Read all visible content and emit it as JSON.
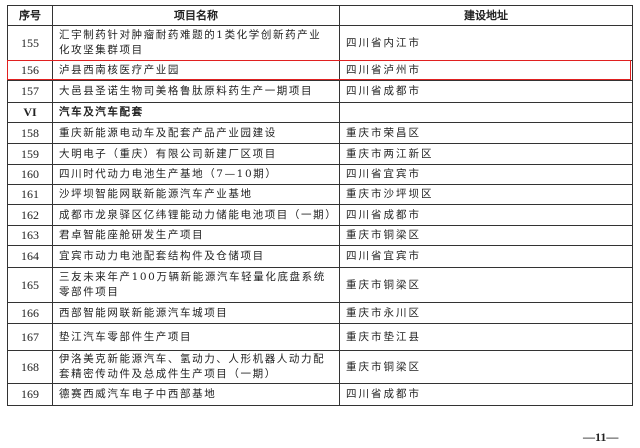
{
  "table": {
    "headers": {
      "index": "序号",
      "name": "项目名称",
      "address": "建设地址"
    },
    "rows": [
      {
        "no": "155",
        "name": "汇宇制药针对肿瘤耐药难题的1类化学创新药产业化攻坚集群项目",
        "address": "四川省内江市"
      },
      {
        "no": "156",
        "name": "泸县西南核医疗产业园",
        "address": "四川省泸州市",
        "highlighted": true
      },
      {
        "no": "157",
        "name": "大邑县圣诺生物司美格鲁肽原料药生产一期项目",
        "address": "四川省成都市"
      },
      {
        "no": "VI",
        "name": "汽车及汽车配套",
        "address": "",
        "category": true
      },
      {
        "no": "158",
        "name": "重庆新能源电动车及配套产品产业园建设",
        "address": "重庆市荣昌区"
      },
      {
        "no": "159",
        "name": "大明电子（重庆）有限公司新建厂区项目",
        "address": "重庆市两江新区"
      },
      {
        "no": "160",
        "name": "四川时代动力电池生产基地（7—10期）",
        "address": "四川省宜宾市"
      },
      {
        "no": "161",
        "name": "沙坪坝智能网联新能源汽车产业基地",
        "address": "重庆市沙坪坝区"
      },
      {
        "no": "162",
        "name": "成都市龙泉驿区亿纬锂能动力储能电池项目（一期）",
        "address": "四川省成都市"
      },
      {
        "no": "163",
        "name": "君卓智能座舱研发生产项目",
        "address": "重庆市铜梁区"
      },
      {
        "no": "164",
        "name": "宜宾市动力电池配套结构件及仓储项目",
        "address": "四川省宜宾市"
      },
      {
        "no": "165",
        "name": "三友未来年产100万辆新能源汽车轻量化底盘系统零部件项目",
        "address": "重庆市铜梁区"
      },
      {
        "no": "166",
        "name": "西部智能网联新能源汽车城项目",
        "address": "重庆市永川区"
      },
      {
        "no": "167",
        "name": "垫江汽车零部件生产项目",
        "address": "重庆市垫江县"
      },
      {
        "no": "168",
        "name": "伊洛美克新能源汽车、氢动力、人形机器人动力配套精密传动件及总成件生产项目（一期）",
        "address": "重庆市铜梁区"
      },
      {
        "no": "169",
        "name": "德赛西威汽车电子中西部基地",
        "address": "四川省成都市"
      }
    ]
  },
  "highlight_color": "#e02020",
  "page_number": "—11—"
}
